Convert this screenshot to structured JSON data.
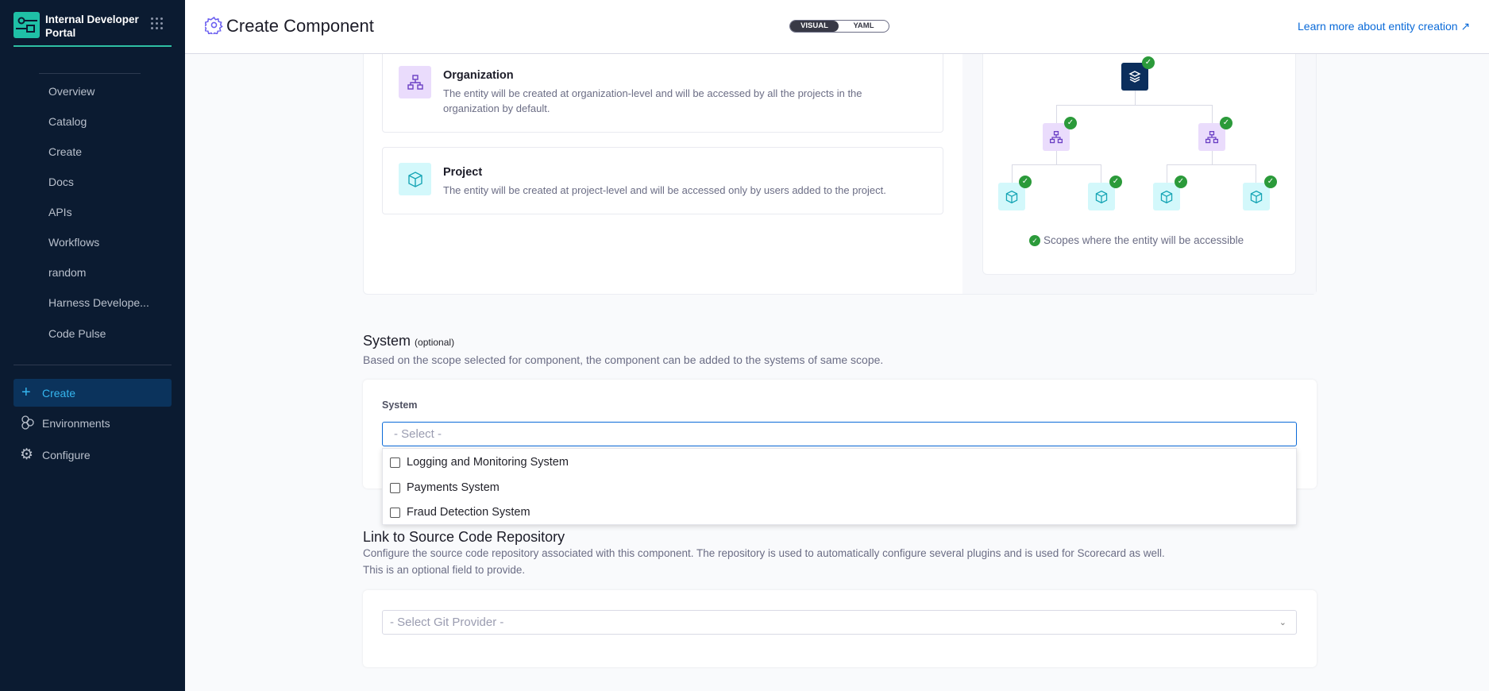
{
  "sidebar": {
    "brand": "Internal Developer Portal",
    "items": [
      {
        "label": "Overview"
      },
      {
        "label": "Catalog"
      },
      {
        "label": "Create"
      },
      {
        "label": "Docs"
      },
      {
        "label": "APIs"
      },
      {
        "label": "Workflows"
      },
      {
        "label": "random"
      },
      {
        "label": "Harness Develope..."
      },
      {
        "label": "Code Pulse"
      }
    ],
    "main_items": [
      {
        "label": "Create",
        "icon": "plus-icon",
        "active": true
      },
      {
        "label": "Environments",
        "icon": "environments-icon"
      },
      {
        "label": "Configure",
        "icon": "gear-icon"
      }
    ]
  },
  "header": {
    "title": "Create Component",
    "toggle": {
      "visual": "VISUAL",
      "yaml": "YAML",
      "selected": "VISUAL"
    },
    "learn_more": "Learn more about entity creation"
  },
  "scope": {
    "options": [
      {
        "title": "Organization",
        "desc": "The entity will be created at organization-level and will be accessed by all the projects in the organization by default."
      },
      {
        "title": "Project",
        "desc": "The entity will be created at project-level and will be accessed only by users added to the project."
      }
    ],
    "caption": "Scopes where the entity will be accessible"
  },
  "system": {
    "title": "System",
    "optional": "(optional)",
    "desc": "Based on the scope selected for component, the component can be added to the systems of same scope.",
    "label": "System",
    "placeholder": "- Select -",
    "options": [
      "Logging and Monitoring System",
      "Payments System",
      "Fraud Detection System"
    ]
  },
  "repo": {
    "title": "Link to Source Code Repository",
    "desc1": "Configure the source code repository associated with this component. The repository is used to automatically configure several plugins and is used for Scorecard as well.",
    "desc2": "This is an optional field to provide.",
    "placeholder": "- Select Git Provider -"
  },
  "colors": {
    "sidebar": "#0b1b31",
    "accent": "#2fbfa3",
    "link": "#0a6ad8",
    "check": "#2b9a3a"
  }
}
